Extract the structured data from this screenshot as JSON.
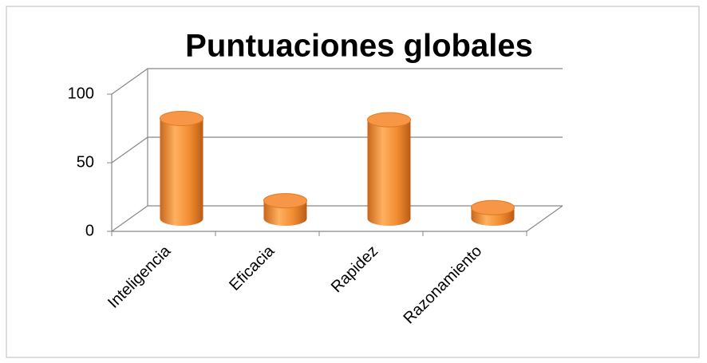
{
  "chart_data": {
    "type": "bar3d",
    "title": "Puntuaciones globales",
    "categories": [
      "Inteligencia",
      "Eficacia",
      "Rapidez",
      "Razonamiento"
    ],
    "values": [
      73,
      13,
      72,
      8
    ],
    "color": "#f79646",
    "ylim": [
      0,
      100
    ],
    "yticks": [
      0,
      50,
      100
    ],
    "grid": true
  }
}
